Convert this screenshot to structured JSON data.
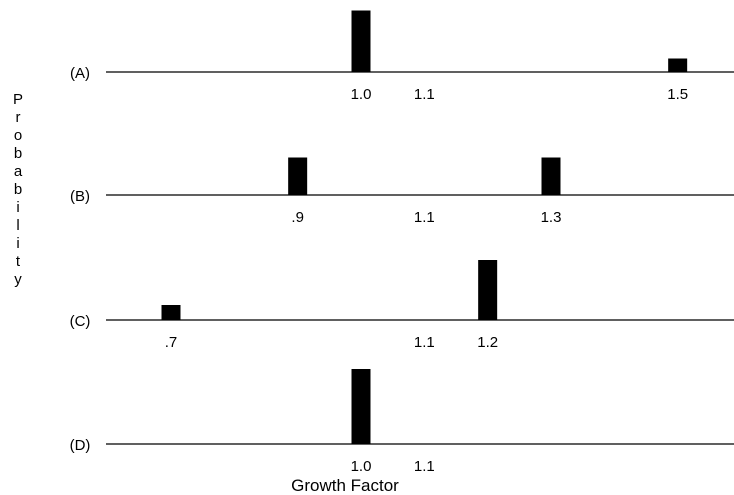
{
  "chart_data": {
    "type": "bar",
    "title": "",
    "ylabel": "Probability",
    "xlabel": "Growth Factor",
    "grid": false,
    "panels": [
      {
        "label": "(A)",
        "bars": [
          {
            "x": 1.0,
            "height": 0.82
          },
          {
            "x": 1.5,
            "height": 0.18
          }
        ],
        "tick_labels": [
          {
            "x": 1.0,
            "text": "1.0"
          },
          {
            "x": 1.1,
            "text": "1.1"
          },
          {
            "x": 1.5,
            "text": "1.5"
          }
        ]
      },
      {
        "label": "(B)",
        "bars": [
          {
            "x": 0.9,
            "height": 0.5
          },
          {
            "x": 1.3,
            "height": 0.5
          }
        ],
        "tick_labels": [
          {
            "x": 0.9,
            "text": ".9"
          },
          {
            "x": 1.1,
            "text": "1.1"
          },
          {
            "x": 1.3,
            "text": "1.3"
          }
        ]
      },
      {
        "label": "(C)",
        "bars": [
          {
            "x": 0.7,
            "height": 0.2
          },
          {
            "x": 1.2,
            "height": 0.8
          }
        ],
        "tick_labels": [
          {
            "x": 0.7,
            "text": ".7"
          },
          {
            "x": 1.1,
            "text": "1.1"
          },
          {
            "x": 1.2,
            "text": "1.2"
          }
        ]
      },
      {
        "label": "(D)",
        "bars": [
          {
            "x": 1.0,
            "height": 1.0
          }
        ],
        "tick_labels": [
          {
            "x": 1.0,
            "text": "1.0"
          },
          {
            "x": 1.1,
            "text": "1.1"
          }
        ]
      }
    ]
  }
}
